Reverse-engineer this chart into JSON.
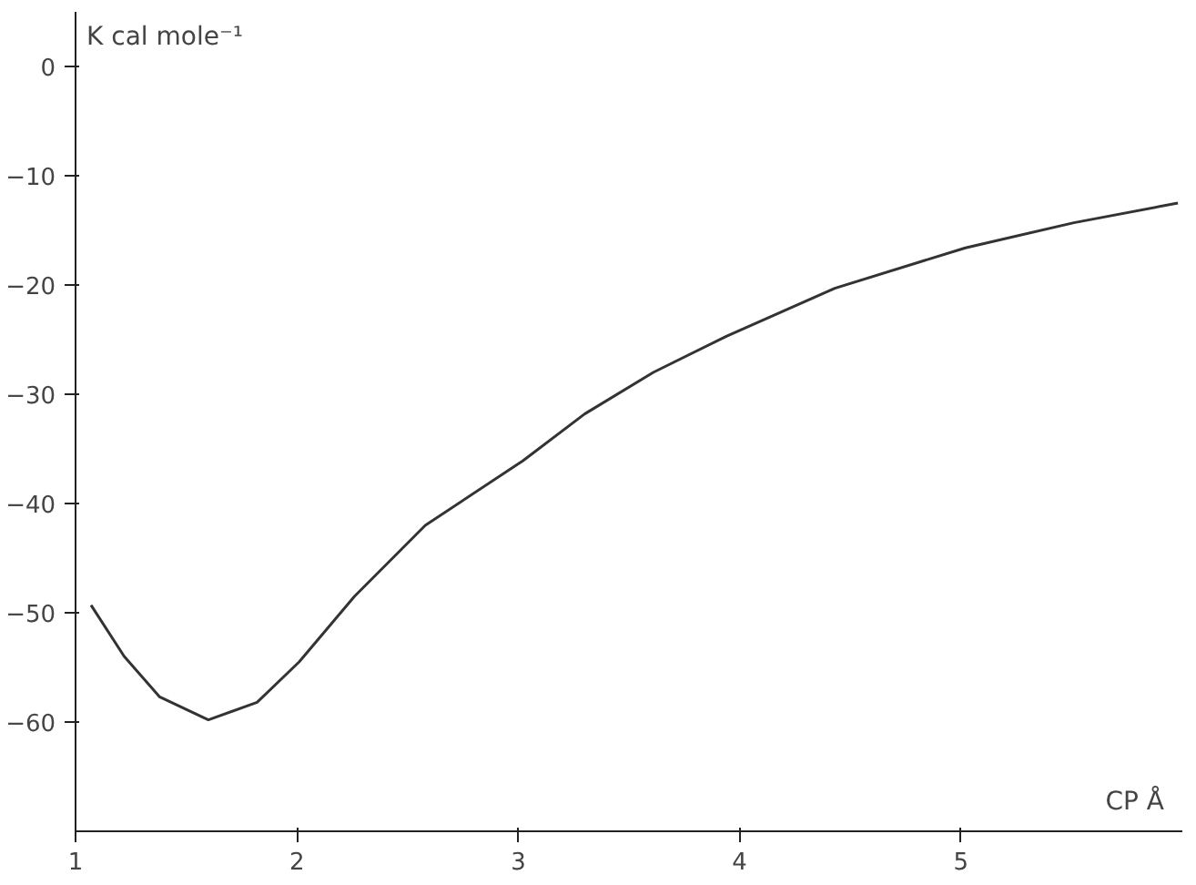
{
  "chart_data": {
    "type": "line",
    "xlabel": "CP Å",
    "ylabel": "K cal mole⁻¹",
    "x": [
      1.07,
      1.22,
      1.38,
      1.6,
      1.82,
      2.01,
      2.26,
      2.58,
      3.02,
      3.3,
      3.61,
      3.94,
      4.43,
      5.02,
      5.51,
      5.98
    ],
    "series": [
      {
        "color": "#333333",
        "values": [
          -49.3,
          -54,
          -57.7,
          -59.8,
          -58.2,
          -54.5,
          -48.5,
          -42,
          -36.1,
          -31.8,
          -28,
          -24.7,
          -20.3,
          -16.6,
          -14.3,
          -12.5
        ]
      }
    ],
    "xlim": [
      1,
      6
    ],
    "ylim": [
      -70,
      5
    ],
    "xticks": [
      1,
      2,
      3,
      4,
      5
    ],
    "yticks": [
      0,
      -10,
      -20,
      -30,
      -40,
      -50,
      -60
    ],
    "grid": false,
    "marker": "none",
    "line_style": "solid"
  }
}
